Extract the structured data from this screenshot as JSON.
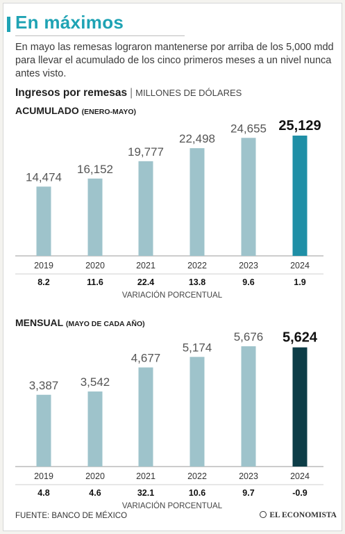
{
  "header": {
    "title": "En máximos",
    "subtitle": "En mayo las remesas lograron mantenerse por arriba de los 5,000 mdd para llevar el acumulado de los cinco primeros meses a un nivel nunca antes visto.",
    "section_title": "Ingresos por remesas",
    "section_sep": "|",
    "section_units": "MILLONES DE DÓLARES"
  },
  "colors": {
    "accent": "#1fa3b4",
    "bar": "#9ec3cb",
    "highlight_top": "#1f8fa6",
    "highlight_bottom": "#0d3d47"
  },
  "chart_data": [
    {
      "type": "bar",
      "label_main": "ACUMULADO",
      "label_sub": "(ENERO-MAYO)",
      "categories": [
        "2019",
        "2020",
        "2021",
        "2022",
        "2023",
        "2024"
      ],
      "value_labels": [
        "14,474",
        "16,152",
        "19,777",
        "22,498",
        "24,655",
        "25,129"
      ],
      "values": [
        14474,
        16152,
        19777,
        22498,
        24655,
        25129
      ],
      "variation": [
        "8.2",
        "11.6",
        "22.4",
        "13.8",
        "9.6",
        "1.9"
      ],
      "variation_label": "VARIACIÓN PORCENTUAL",
      "highlight_index": 5
    },
    {
      "type": "bar",
      "label_main": "MENSUAL",
      "label_sub": "(MAYO DE CADA AÑO)",
      "categories": [
        "2019",
        "2020",
        "2021",
        "2022",
        "2023",
        "2024"
      ],
      "value_labels": [
        "3,387",
        "3,542",
        "4,677",
        "5,174",
        "5,676",
        "5,624"
      ],
      "values": [
        3387,
        3542,
        4677,
        5174,
        5676,
        5624
      ],
      "variation": [
        "4.8",
        "4.6",
        "32.1",
        "10.6",
        "9.7",
        "-0.9"
      ],
      "variation_label": "VARIACIÓN PORCENTUAL",
      "highlight_index": 5
    }
  ],
  "footer": {
    "source": "FUENTE: BANCO DE MÉXICO",
    "brand": "EL ECONOMISTA",
    "brand_icon": "el-economista-logo-icon"
  }
}
